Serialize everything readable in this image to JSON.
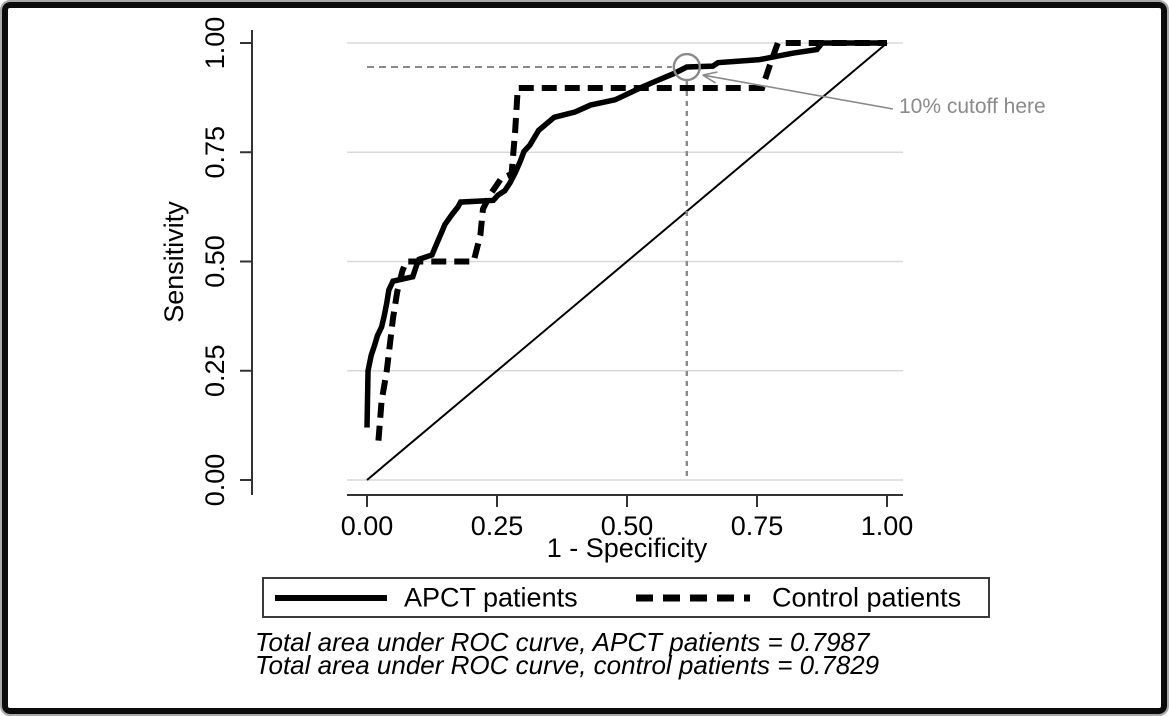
{
  "colors": {
    "curve": "#000000",
    "axis": "#333333",
    "grid": "#d8d8d8",
    "annotation": "#8a8a8a",
    "background": "#ffffff"
  },
  "annotation": {
    "label": "10% cutoff here"
  },
  "legend": {
    "items": [
      {
        "label": "APCT patients",
        "style": "solid"
      },
      {
        "label": "Control patients",
        "style": "dashed"
      }
    ]
  },
  "footnotes": {
    "line1": "Total area under ROC curve, APCT patients = 0.7987",
    "line2": "Total area under ROC curve, control patients = 0.7829"
  },
  "chart_data": {
    "type": "line",
    "title": "",
    "xlabel": "1 - Specificity",
    "ylabel": "Sensitivity",
    "xlim": [
      0,
      1
    ],
    "ylim": [
      0,
      1
    ],
    "xticks": [
      0,
      0.25,
      0.5,
      0.75,
      1
    ],
    "xtick_labels": [
      "0.00",
      "0.25",
      "0.50",
      "0.75",
      "1.00"
    ],
    "yticks": [
      0,
      0.25,
      0.5,
      0.75,
      1
    ],
    "ytick_labels": [
      "0.00",
      "0.25",
      "0.50",
      "0.75",
      "1.00"
    ],
    "grid": "horizontal",
    "legend_position": "bottom",
    "reference_line": {
      "from": [
        0,
        0
      ],
      "to": [
        1,
        1
      ]
    },
    "cutoff_marker": {
      "x": 0.615,
      "y": 0.945,
      "label": "10% cutoff here"
    },
    "series": [
      {
        "name": "APCT patients",
        "style": "solid",
        "auc": 0.7987,
        "points": [
          [
            0.0,
            0.12
          ],
          [
            0.002,
            0.25
          ],
          [
            0.008,
            0.285
          ],
          [
            0.015,
            0.31
          ],
          [
            0.02,
            0.33
          ],
          [
            0.028,
            0.35
          ],
          [
            0.033,
            0.375
          ],
          [
            0.038,
            0.405
          ],
          [
            0.042,
            0.435
          ],
          [
            0.05,
            0.455
          ],
          [
            0.088,
            0.465
          ],
          [
            0.095,
            0.49
          ],
          [
            0.1,
            0.505
          ],
          [
            0.125,
            0.515
          ],
          [
            0.132,
            0.535
          ],
          [
            0.14,
            0.557
          ],
          [
            0.15,
            0.585
          ],
          [
            0.163,
            0.607
          ],
          [
            0.175,
            0.625
          ],
          [
            0.18,
            0.636
          ],
          [
            0.243,
            0.64
          ],
          [
            0.252,
            0.652
          ],
          [
            0.265,
            0.662
          ],
          [
            0.275,
            0.68
          ],
          [
            0.285,
            0.703
          ],
          [
            0.295,
            0.73
          ],
          [
            0.302,
            0.752
          ],
          [
            0.313,
            0.766
          ],
          [
            0.33,
            0.8
          ],
          [
            0.36,
            0.83
          ],
          [
            0.4,
            0.842
          ],
          [
            0.43,
            0.858
          ],
          [
            0.477,
            0.87
          ],
          [
            0.495,
            0.88
          ],
          [
            0.525,
            0.897
          ],
          [
            0.56,
            0.915
          ],
          [
            0.59,
            0.93
          ],
          [
            0.615,
            0.945
          ],
          [
            0.665,
            0.947
          ],
          [
            0.675,
            0.955
          ],
          [
            0.755,
            0.962
          ],
          [
            0.79,
            0.97
          ],
          [
            0.82,
            0.977
          ],
          [
            0.865,
            0.985
          ],
          [
            0.875,
            1.0
          ],
          [
            1.0,
            1.0
          ]
        ]
      },
      {
        "name": "Control patients",
        "style": "dashed",
        "auc": 0.7829,
        "points": [
          [
            0.022,
            0.09
          ],
          [
            0.028,
            0.18
          ],
          [
            0.038,
            0.25
          ],
          [
            0.044,
            0.31
          ],
          [
            0.05,
            0.37
          ],
          [
            0.058,
            0.43
          ],
          [
            0.068,
            0.478
          ],
          [
            0.075,
            0.5
          ],
          [
            0.205,
            0.5
          ],
          [
            0.218,
            0.56
          ],
          [
            0.223,
            0.62
          ],
          [
            0.238,
            0.655
          ],
          [
            0.258,
            0.69
          ],
          [
            0.278,
            0.7
          ],
          [
            0.285,
            0.8
          ],
          [
            0.29,
            0.897
          ],
          [
            0.76,
            0.897
          ],
          [
            0.775,
            0.95
          ],
          [
            0.79,
            1.0
          ],
          [
            1.0,
            1.0
          ]
        ]
      }
    ]
  }
}
